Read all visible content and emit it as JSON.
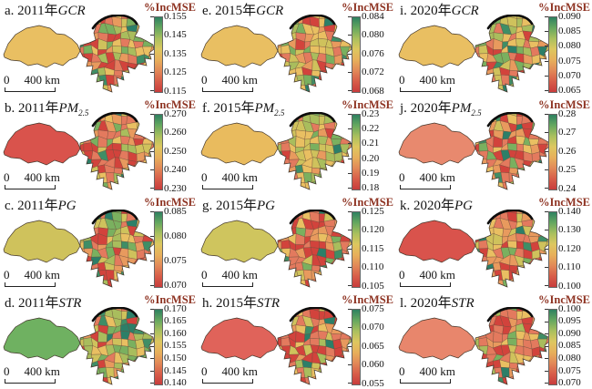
{
  "figure": {
    "legend_title": "%IncMSE",
    "legend_title_color": "#8e3322",
    "scale_zero": "0",
    "scale_unit": "400 km",
    "colorbar_stops": [
      "#2e8160",
      "#64a75f",
      "#abc05e",
      "#ddc75f",
      "#e7b05b",
      "#e28a58",
      "#d75c49",
      "#c83c3c"
    ],
    "region_palette": [
      "#d2433c",
      "#e37a5e",
      "#e89a5e",
      "#e9bf62",
      "#cfc25c",
      "#a9bd5d",
      "#7ab05f",
      "#3f8e66",
      "#2c7f68"
    ],
    "region_outline_color": "#43372b",
    "river_color": "#0d0d0d"
  },
  "panels": [
    {
      "id": "a",
      "label_prefix": "a. 2011年",
      "var": "GCR",
      "var_sub": "",
      "ticks": [
        "0.155",
        "0.145",
        "0.135",
        "0.125",
        "0.115"
      ],
      "tone": "mixed",
      "west_color": "#e9bf62"
    },
    {
      "id": "e",
      "label_prefix": "e. 2015年",
      "var": "GCR",
      "var_sub": "",
      "ticks": [
        "0.084",
        "0.080",
        "0.076",
        "0.072",
        "0.068"
      ],
      "tone": "yellow",
      "west_color": "#e9bf62"
    },
    {
      "id": "i",
      "label_prefix": "i. 2020年",
      "var": "GCR",
      "var_sub": "",
      "ticks": [
        "0.090",
        "0.085",
        "0.080",
        "0.075",
        "0.070",
        "0.065"
      ],
      "tone": "yellow",
      "west_color": "#e9bf62"
    },
    {
      "id": "b",
      "label_prefix": "b. 2011年",
      "var": "PM",
      "var_sub": "2.5",
      "ticks": [
        "0.270",
        "0.260",
        "0.250",
        "0.240",
        "0.230"
      ],
      "tone": "red",
      "west_color": "#d9534c"
    },
    {
      "id": "f",
      "label_prefix": "f. 2015年",
      "var": "PM",
      "var_sub": "2.5",
      "ticks": [
        "0.23",
        "0.22",
        "0.21",
        "0.20",
        "0.19",
        "0.18"
      ],
      "tone": "yellow",
      "west_color": "#e9bb5e"
    },
    {
      "id": "j",
      "label_prefix": "j. 2020年",
      "var": "PM",
      "var_sub": "2.5",
      "ticks": [
        "0.28",
        "0.27",
        "0.26",
        "0.25",
        "0.24"
      ],
      "tone": "salmon",
      "west_color": "#e8896e"
    },
    {
      "id": "c",
      "label_prefix": "c. 2011年",
      "var": "PG",
      "var_sub": "",
      "ticks": [
        "0.085",
        "0.080",
        "0.075",
        "0.070"
      ],
      "tone": "mixed",
      "west_color": "#cfc25c"
    },
    {
      "id": "g",
      "label_prefix": "g. 2015年",
      "var": "PG",
      "var_sub": "",
      "ticks": [
        "0.125",
        "0.120",
        "0.115",
        "0.110",
        "0.105"
      ],
      "tone": "salmon",
      "west_color": "#cfc55e"
    },
    {
      "id": "k",
      "label_prefix": "k. 2020年",
      "var": "PG",
      "var_sub": "",
      "ticks": [
        "0.140",
        "0.130",
        "0.120",
        "0.110",
        "0.100"
      ],
      "tone": "salmon",
      "west_color": "#d9534c"
    },
    {
      "id": "d",
      "label_prefix": "d. 2011年",
      "var": "STR",
      "var_sub": "",
      "ticks": [
        "0.170",
        "0.165",
        "0.160",
        "0.155",
        "0.150",
        "0.145",
        "0.140"
      ],
      "tone": "green",
      "west_color": "#6fb161"
    },
    {
      "id": "h",
      "label_prefix": "h. 2015年",
      "var": "STR",
      "var_sub": "",
      "ticks": [
        "0.075",
        "0.070",
        "0.065",
        "0.060",
        "0.055"
      ],
      "tone": "red",
      "west_color": "#e0635a"
    },
    {
      "id": "l",
      "label_prefix": "l. 2020年",
      "var": "STR",
      "var_sub": "",
      "ticks": [
        "0.100",
        "0.095",
        "0.090",
        "0.085",
        "0.080",
        "0.075",
        "0.070"
      ],
      "tone": "salmon",
      "west_color": "#e8866c"
    }
  ]
}
